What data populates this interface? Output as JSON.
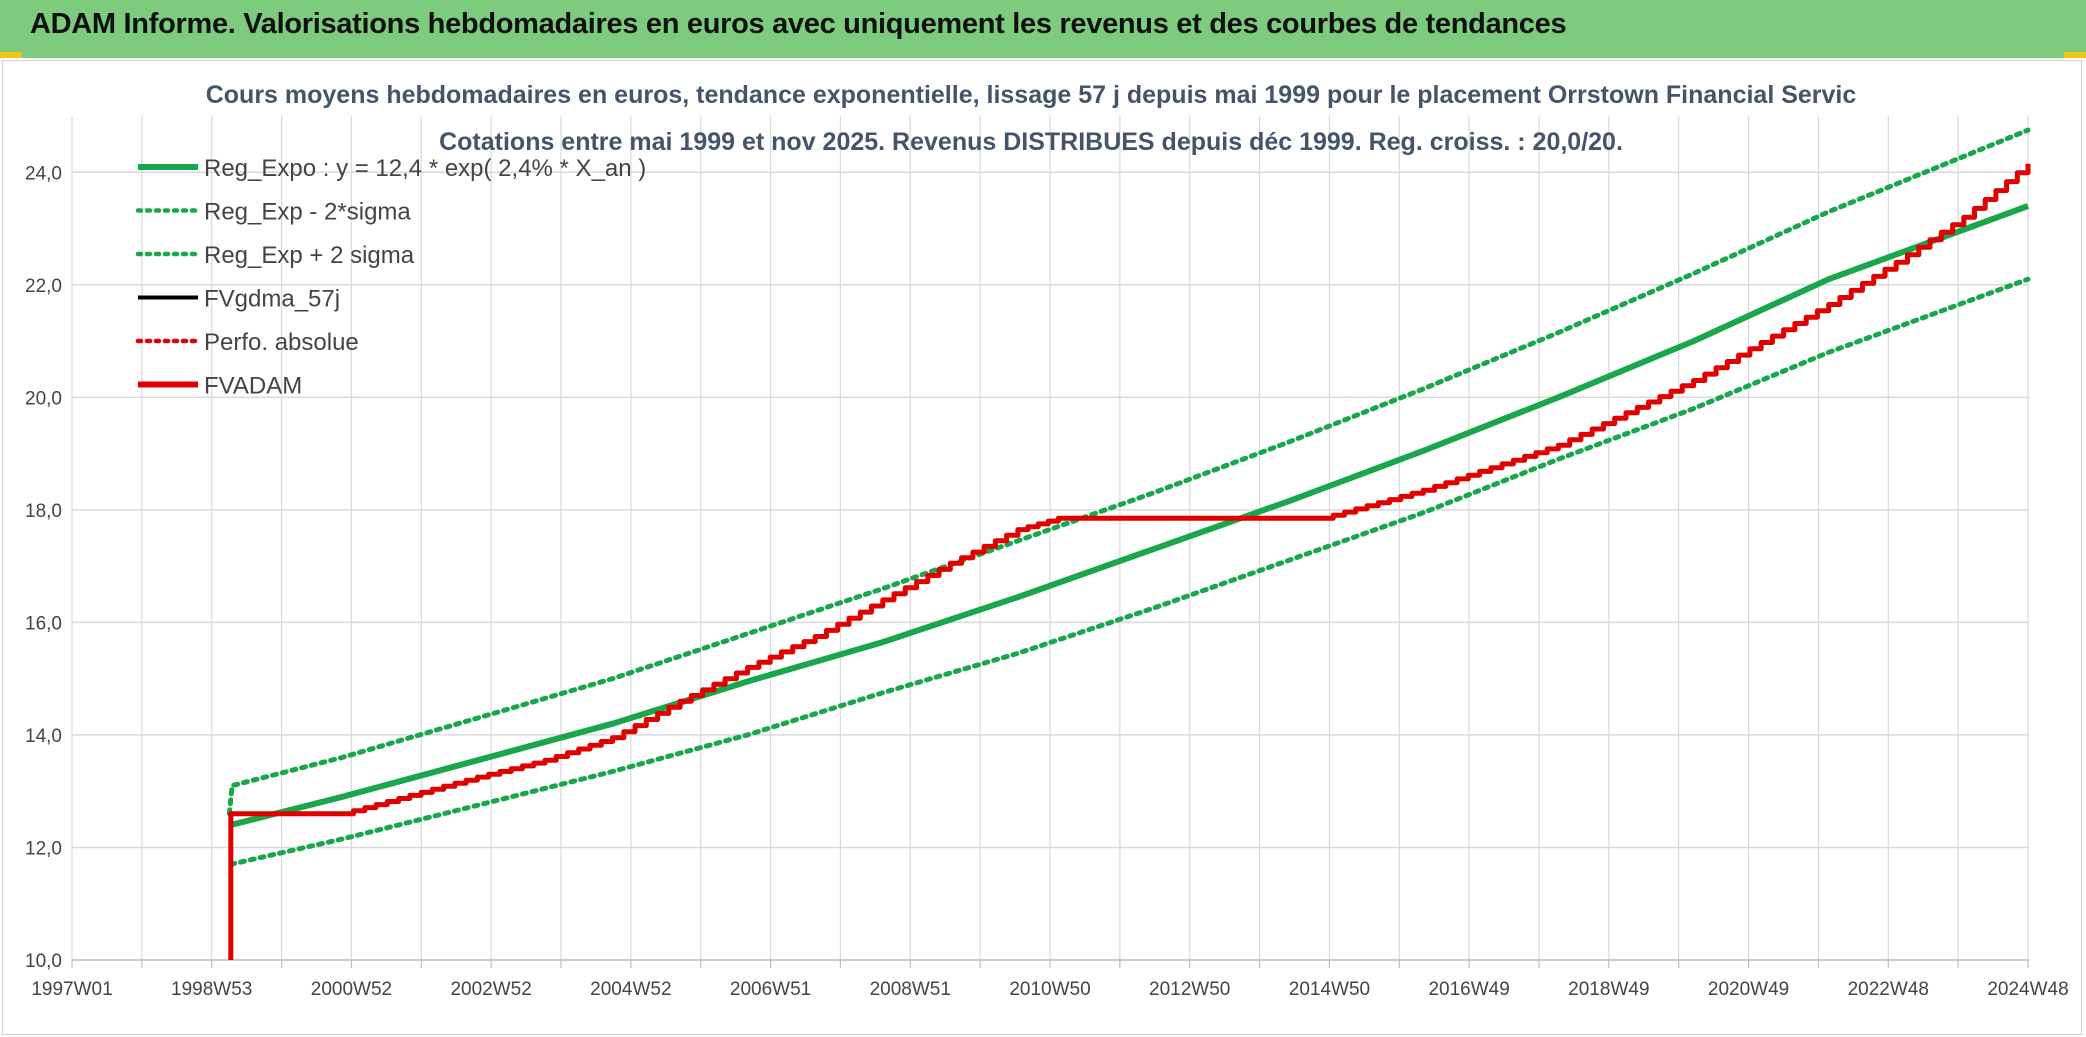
{
  "banner": {
    "title": "ADAM Informe. Valorisations hebdomadaires en euros avec uniquement les revenus et des courbes de tendances"
  },
  "colors": {
    "banner_bg": "#7dcb7d",
    "accent": "#f0c419",
    "regression": "#1aa64b",
    "sigma": "#1aa64b",
    "fvgdma": "#000000",
    "perf": "#e00000",
    "fvadam": "#e00000",
    "grid": "#d9d9d9"
  },
  "chart_data": {
    "type": "line",
    "title": "Cours moyens hebdomadaires en euros, tendance exponentielle, lissage 57 j depuis mai 1999 pour le placement Orrstown Financial Servic",
    "subtitle": "Cotations entre mai 1999 et nov 2025. Revenus DISTRIBUES depuis déc 1999. Reg. croiss. : 20,0/20.",
    "xlabel": "",
    "ylabel": "",
    "x_ticks": [
      "1997W01",
      "1998W53",
      "2000W52",
      "2002W52",
      "2004W52",
      "2006W51",
      "2008W51",
      "2010W50",
      "2012W50",
      "2014W50",
      "2016W49",
      "2018W49",
      "2020W49",
      "2022W48",
      "2024W48"
    ],
    "xlim": [
      1997.0,
      2025.95
    ],
    "ylim": [
      10,
      25
    ],
    "y_ticks": [
      10,
      12,
      14,
      16,
      18,
      20,
      22,
      24
    ],
    "y_tick_labels": [
      "10,0",
      "12,0",
      "14,0",
      "16,0",
      "18,0",
      "20,0",
      "22,0",
      "24,0"
    ],
    "grid": true,
    "legend_position": "top-left",
    "series": [
      {
        "name": "Reg_Expo : y = 12,4 * exp( 2,4% *  X_an )",
        "style": "solid",
        "color": "#1aa64b",
        "points": [
          [
            1999.35,
            12.4
          ],
          [
            2001.0,
            12.9
          ],
          [
            2003.0,
            13.55
          ],
          [
            2005.0,
            14.2
          ],
          [
            2007.0,
            14.95
          ],
          [
            2009.0,
            15.65
          ],
          [
            2011.0,
            16.45
          ],
          [
            2013.0,
            17.3
          ],
          [
            2015.0,
            18.15
          ],
          [
            2017.0,
            19.05
          ],
          [
            2019.0,
            20.0
          ],
          [
            2021.0,
            21.0
          ],
          [
            2023.0,
            22.1
          ],
          [
            2025.95,
            23.4
          ]
        ]
      },
      {
        "name": "Reg_Exp - 2*sigma",
        "style": "dotted",
        "color": "#1aa64b",
        "points": [
          [
            1999.35,
            11.7
          ],
          [
            2001.0,
            12.15
          ],
          [
            2003.0,
            12.75
          ],
          [
            2005.0,
            13.35
          ],
          [
            2007.0,
            14.0
          ],
          [
            2009.0,
            14.75
          ],
          [
            2011.0,
            15.45
          ],
          [
            2013.0,
            16.25
          ],
          [
            2015.0,
            17.1
          ],
          [
            2017.0,
            17.95
          ],
          [
            2019.0,
            18.9
          ],
          [
            2021.0,
            19.8
          ],
          [
            2023.0,
            20.8
          ],
          [
            2025.95,
            22.1
          ]
        ]
      },
      {
        "name": "Reg_Exp + 2 sigma",
        "style": "dotted",
        "color": "#1aa64b",
        "points": [
          [
            1999.33,
            12.6
          ],
          [
            1999.37,
            13.1
          ],
          [
            2001.0,
            13.6
          ],
          [
            2003.0,
            14.3
          ],
          [
            2005.0,
            15.0
          ],
          [
            2007.0,
            15.8
          ],
          [
            2009.0,
            16.6
          ],
          [
            2011.0,
            17.45
          ],
          [
            2013.0,
            18.3
          ],
          [
            2015.0,
            19.2
          ],
          [
            2017.0,
            20.15
          ],
          [
            2019.0,
            21.15
          ],
          [
            2021.0,
            22.2
          ],
          [
            2023.0,
            23.3
          ],
          [
            2025.95,
            24.75
          ]
        ]
      },
      {
        "name": "FVgdma_57j",
        "style": "solid",
        "color": "#000000",
        "points": []
      },
      {
        "name": "Perfo. absolue",
        "style": "dotted",
        "color": "#e00000",
        "points": []
      },
      {
        "name": "FVADAM",
        "style": "solid",
        "color": "#e00000",
        "points": [
          [
            1999.35,
            10.0
          ],
          [
            1999.35,
            12.6
          ],
          [
            2001.0,
            12.6
          ],
          [
            2003.0,
            13.25
          ],
          [
            2004.0,
            13.55
          ],
          [
            2005.0,
            13.95
          ],
          [
            2006.0,
            14.6
          ],
          [
            2007.0,
            15.2
          ],
          [
            2008.0,
            15.75
          ],
          [
            2009.0,
            16.4
          ],
          [
            2010.0,
            17.05
          ],
          [
            2011.0,
            17.65
          ],
          [
            2011.6,
            17.85
          ],
          [
            2015.5,
            17.85
          ],
          [
            2017.0,
            18.35
          ],
          [
            2019.0,
            19.15
          ],
          [
            2021.0,
            20.3
          ],
          [
            2023.0,
            21.65
          ],
          [
            2024.0,
            22.4
          ],
          [
            2025.0,
            23.2
          ],
          [
            2025.95,
            24.15
          ]
        ]
      }
    ]
  }
}
